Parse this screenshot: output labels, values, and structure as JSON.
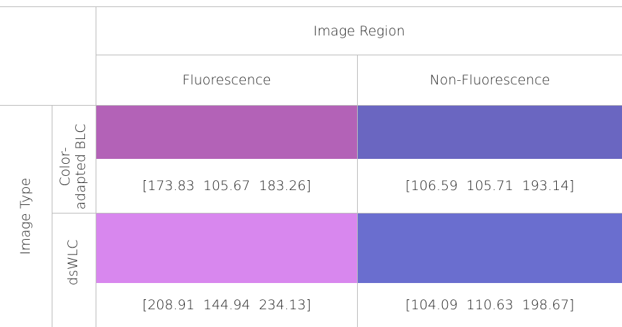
{
  "table": {
    "header": {
      "group_label": "Image Region",
      "columns": [
        "Fluorescence",
        "Non-Fluorescence"
      ]
    },
    "row_group_label": "Image Type",
    "rows": [
      {
        "label_line1": "Color-",
        "label_line2": "adapted BLC",
        "swatches": [
          "#B362B7",
          "#6A66C1"
        ],
        "values": [
          "[173.83  105.67  183.26]",
          "[106.59  105.71  193.14]"
        ]
      },
      {
        "label_line1": "dsWLC",
        "label_line2": "",
        "swatches": [
          "#D887EE",
          "#6A6ECF"
        ],
        "values": [
          "[208.91  144.94  234.13]",
          "[104.09  110.63  198.67]"
        ]
      }
    ]
  }
}
